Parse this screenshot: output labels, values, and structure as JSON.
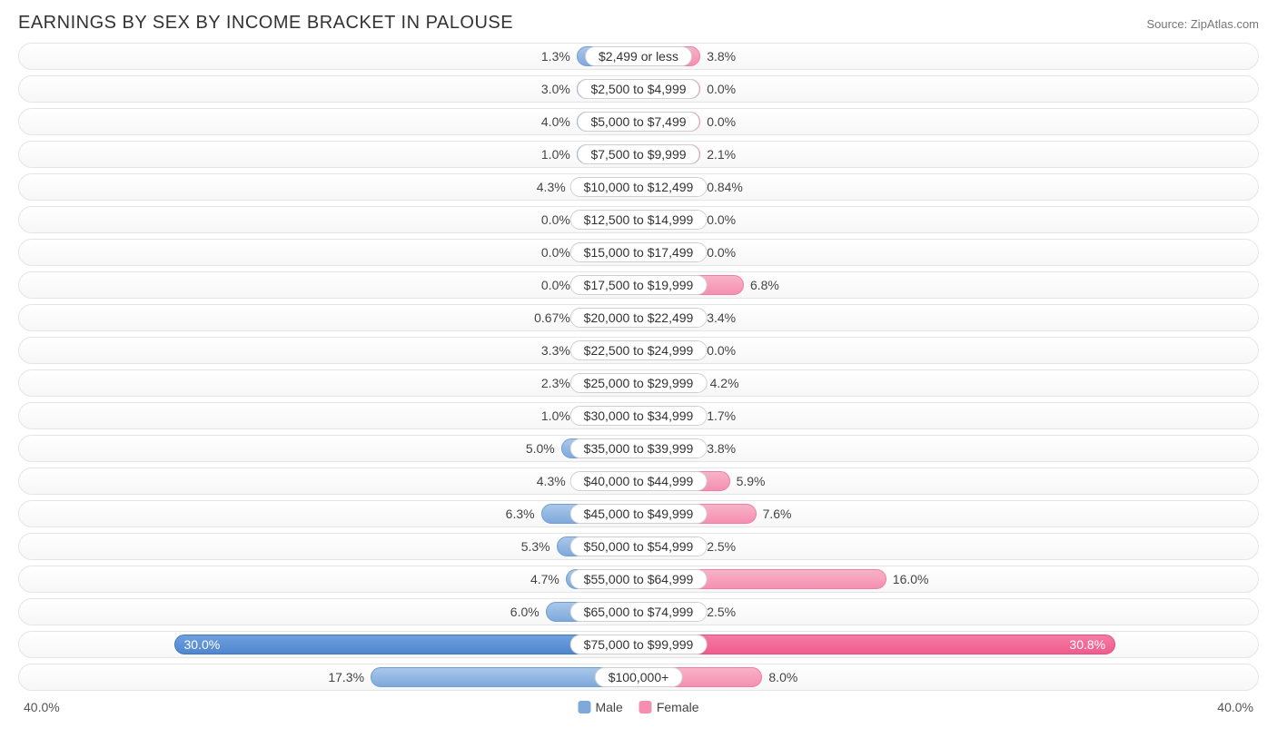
{
  "header": {
    "title": "EARNINGS BY SEX BY INCOME BRACKET IN PALOUSE",
    "source": "Source: ZipAtlas.com"
  },
  "chart": {
    "type": "diverging-bar",
    "axis_max": 40.0,
    "axis_label_left": "40.0%",
    "axis_label_right": "40.0%",
    "min_bar_pct": 4.0,
    "big_threshold": 25.0,
    "colors": {
      "male": "#7fa9db",
      "male_big": "#4f87cf",
      "female": "#f48fb1",
      "female_big": "#ef5b8e",
      "track_border": "#e5e5e5",
      "text": "#444444",
      "pill_border": "#d0d0d0",
      "background": "#ffffff"
    },
    "legend": {
      "male": "Male",
      "female": "Female"
    },
    "rows": [
      {
        "category": "$2,499 or less",
        "male": 1.3,
        "male_label": "1.3%",
        "female": 3.8,
        "female_label": "3.8%"
      },
      {
        "category": "$2,500 to $4,999",
        "male": 3.0,
        "male_label": "3.0%",
        "female": 0.0,
        "female_label": "0.0%"
      },
      {
        "category": "$5,000 to $7,499",
        "male": 4.0,
        "male_label": "4.0%",
        "female": 0.0,
        "female_label": "0.0%"
      },
      {
        "category": "$7,500 to $9,999",
        "male": 1.0,
        "male_label": "1.0%",
        "female": 2.1,
        "female_label": "2.1%"
      },
      {
        "category": "$10,000 to $12,499",
        "male": 4.3,
        "male_label": "4.3%",
        "female": 0.84,
        "female_label": "0.84%"
      },
      {
        "category": "$12,500 to $14,999",
        "male": 0.0,
        "male_label": "0.0%",
        "female": 0.0,
        "female_label": "0.0%"
      },
      {
        "category": "$15,000 to $17,499",
        "male": 0.0,
        "male_label": "0.0%",
        "female": 0.0,
        "female_label": "0.0%"
      },
      {
        "category": "$17,500 to $19,999",
        "male": 0.0,
        "male_label": "0.0%",
        "female": 6.8,
        "female_label": "6.8%"
      },
      {
        "category": "$20,000 to $22,499",
        "male": 0.67,
        "male_label": "0.67%",
        "female": 3.4,
        "female_label": "3.4%"
      },
      {
        "category": "$22,500 to $24,999",
        "male": 3.3,
        "male_label": "3.3%",
        "female": 0.0,
        "female_label": "0.0%"
      },
      {
        "category": "$25,000 to $29,999",
        "male": 2.3,
        "male_label": "2.3%",
        "female": 4.2,
        "female_label": "4.2%"
      },
      {
        "category": "$30,000 to $34,999",
        "male": 1.0,
        "male_label": "1.0%",
        "female": 1.7,
        "female_label": "1.7%"
      },
      {
        "category": "$35,000 to $39,999",
        "male": 5.0,
        "male_label": "5.0%",
        "female": 3.8,
        "female_label": "3.8%"
      },
      {
        "category": "$40,000 to $44,999",
        "male": 4.3,
        "male_label": "4.3%",
        "female": 5.9,
        "female_label": "5.9%"
      },
      {
        "category": "$45,000 to $49,999",
        "male": 6.3,
        "male_label": "6.3%",
        "female": 7.6,
        "female_label": "7.6%"
      },
      {
        "category": "$50,000 to $54,999",
        "male": 5.3,
        "male_label": "5.3%",
        "female": 2.5,
        "female_label": "2.5%"
      },
      {
        "category": "$55,000 to $64,999",
        "male": 4.7,
        "male_label": "4.7%",
        "female": 16.0,
        "female_label": "16.0%"
      },
      {
        "category": "$65,000 to $74,999",
        "male": 6.0,
        "male_label": "6.0%",
        "female": 2.5,
        "female_label": "2.5%"
      },
      {
        "category": "$75,000 to $99,999",
        "male": 30.0,
        "male_label": "30.0%",
        "female": 30.8,
        "female_label": "30.8%"
      },
      {
        "category": "$100,000+",
        "male": 17.3,
        "male_label": "17.3%",
        "female": 8.0,
        "female_label": "8.0%"
      }
    ]
  }
}
